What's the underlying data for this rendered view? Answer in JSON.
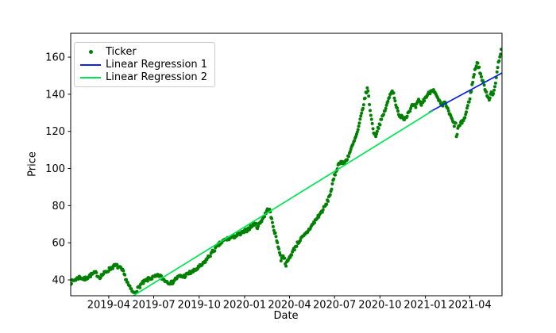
{
  "chart_data": {
    "type": "scatter",
    "title": "",
    "xlabel": "Date",
    "ylabel": "Price",
    "x_tick_labels": [
      "2019-04",
      "2019-07",
      "2019-10",
      "2020-01",
      "2020-04",
      "2020-07",
      "2020-10",
      "2021-01",
      "2021-04"
    ],
    "x_tick_days": [
      77,
      168,
      260,
      352,
      443,
      534,
      626,
      718,
      808
    ],
    "y_ticks": [
      40,
      60,
      80,
      100,
      120,
      140,
      160
    ],
    "xlim_days": [
      0,
      873
    ],
    "ylim": [
      31.46,
      172.84
    ],
    "grid": false,
    "legend_position": "upper-left",
    "series": [
      {
        "name": "Ticker",
        "kind": "scatter",
        "color": "#008000",
        "marker_radius": 2,
        "noise": 1.0,
        "seed": 7,
        "step_days": 1.443,
        "keyframes": [
          [
            0,
            38.5
          ],
          [
            8,
            40
          ],
          [
            18,
            41.5
          ],
          [
            28,
            40.3
          ],
          [
            40,
            42.5
          ],
          [
            50,
            43.8
          ],
          [
            58,
            41.5
          ],
          [
            70,
            44
          ],
          [
            77,
            45.5
          ],
          [
            85,
            47
          ],
          [
            92,
            47.8
          ],
          [
            100,
            46.3
          ],
          [
            106,
            44.5
          ],
          [
            112,
            40.5
          ],
          [
            118,
            36.5
          ],
          [
            127,
            32.8
          ],
          [
            134,
            34.6
          ],
          [
            142,
            37.5
          ],
          [
            152,
            39.5
          ],
          [
            162,
            41
          ],
          [
            172,
            41.6
          ],
          [
            180,
            42.5
          ],
          [
            186,
            40.5
          ],
          [
            196,
            39
          ],
          [
            205,
            38.4
          ],
          [
            212,
            40.5
          ],
          [
            220,
            41.8
          ],
          [
            230,
            42
          ],
          [
            240,
            43.6
          ],
          [
            250,
            44.8
          ],
          [
            258,
            46.5
          ],
          [
            268,
            48.5
          ],
          [
            278,
            52
          ],
          [
            290,
            56
          ],
          [
            302,
            59.5
          ],
          [
            312,
            61.5
          ],
          [
            322,
            62.5
          ],
          [
            332,
            63.5
          ],
          [
            342,
            64.5
          ],
          [
            352,
            66
          ],
          [
            362,
            68
          ],
          [
            372,
            70.5
          ],
          [
            378,
            68.5
          ],
          [
            385,
            71.5
          ],
          [
            392,
            74.5
          ],
          [
            398,
            77.5
          ],
          [
            402,
            78.3
          ],
          [
            408,
            71
          ],
          [
            414,
            64.5
          ],
          [
            420,
            58.5
          ],
          [
            426,
            50.5
          ],
          [
            430,
            53.5
          ],
          [
            436,
            48.2
          ],
          [
            442,
            51.5
          ],
          [
            448,
            54.5
          ],
          [
            454,
            57.5
          ],
          [
            460,
            60
          ],
          [
            466,
            62
          ],
          [
            472,
            63.5
          ],
          [
            478,
            65.5
          ],
          [
            486,
            68.5
          ],
          [
            494,
            71.5
          ],
          [
            502,
            74.5
          ],
          [
            510,
            77.5
          ],
          [
            518,
            81
          ],
          [
            526,
            87
          ],
          [
            534,
            96
          ],
          [
            540,
            101
          ],
          [
            546,
            104
          ],
          [
            552,
            102.5
          ],
          [
            558,
            104.5
          ],
          [
            564,
            108
          ],
          [
            570,
            112
          ],
          [
            576,
            116
          ],
          [
            582,
            121
          ],
          [
            586,
            126
          ],
          [
            590,
            131
          ],
          [
            594,
            136
          ],
          [
            598,
            141
          ],
          [
            601,
            143.5
          ],
          [
            605,
            134
          ],
          [
            609,
            126
          ],
          [
            613,
            120
          ],
          [
            617,
            117.5
          ],
          [
            621,
            121
          ],
          [
            627,
            125
          ],
          [
            633,
            129
          ],
          [
            639,
            133.5
          ],
          [
            645,
            138.5
          ],
          [
            650,
            142.5
          ],
          [
            654,
            140
          ],
          [
            658,
            135
          ],
          [
            662,
            130.5
          ],
          [
            666,
            127
          ],
          [
            670,
            129.5
          ],
          [
            674,
            126.5
          ],
          [
            680,
            128.5
          ],
          [
            686,
            131.5
          ],
          [
            692,
            134
          ],
          [
            698,
            133
          ],
          [
            704,
            136.5
          ],
          [
            710,
            134.5
          ],
          [
            716,
            137.5
          ],
          [
            722,
            139.5
          ],
          [
            728,
            141.5
          ],
          [
            734,
            143
          ],
          [
            740,
            139
          ],
          [
            746,
            136
          ],
          [
            752,
            133.5
          ],
          [
            758,
            136
          ],
          [
            764,
            131
          ],
          [
            770,
            127.5
          ],
          [
            776,
            123.5
          ],
          [
            779,
            124.5
          ],
          [
            781,
            116.5
          ],
          [
            784,
            122
          ],
          [
            792,
            125
          ],
          [
            798,
            127.5
          ],
          [
            804,
            134
          ],
          [
            808,
            138
          ],
          [
            812,
            144
          ],
          [
            816,
            150
          ],
          [
            820,
            155
          ],
          [
            823,
            157.5
          ],
          [
            827,
            153.5
          ],
          [
            831,
            149.5
          ],
          [
            835,
            146
          ],
          [
            839,
            143
          ],
          [
            843,
            139.5
          ],
          [
            847,
            137.5
          ],
          [
            851,
            141
          ],
          [
            855,
            139
          ],
          [
            859,
            145
          ],
          [
            863,
            152
          ],
          [
            867,
            158.5
          ],
          [
            871,
            163.5
          ],
          [
            873,
            166
          ]
        ]
      },
      {
        "name": "Linear Regression 1",
        "kind": "line",
        "color": "#0b24e0",
        "width": 1.7,
        "points": [
          [
            725,
            130.2
          ],
          [
            873,
            151.5
          ]
        ]
      },
      {
        "name": "Linear Regression 2",
        "kind": "line",
        "color": "#00e550",
        "width": 1.7,
        "points": [
          [
            118,
            30.0
          ],
          [
            733,
            131.2
          ]
        ]
      }
    ],
    "legend": {
      "entries": [
        {
          "label": "Ticker",
          "marker": "dot",
          "color": "#008000"
        },
        {
          "label": "Linear Regression 1",
          "marker": "line",
          "color": "#0b24e0"
        },
        {
          "label": "Linear Regression 2",
          "marker": "line",
          "color": "#00e550"
        }
      ]
    }
  }
}
